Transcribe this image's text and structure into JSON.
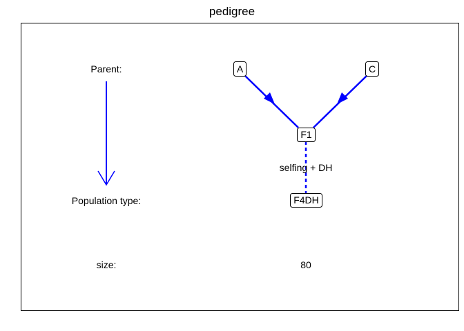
{
  "title": "pedigree",
  "labels": {
    "parent": "Parent:",
    "population_type": "Population type:",
    "size": "size:"
  },
  "nodes": {
    "parent1": "A",
    "parent2": "C",
    "f1": "F1",
    "population": "F4DH"
  },
  "edge_label": "selfing + DH",
  "size_value": "80",
  "colors": {
    "edge": "#0000FF",
    "text": "#000000"
  }
}
